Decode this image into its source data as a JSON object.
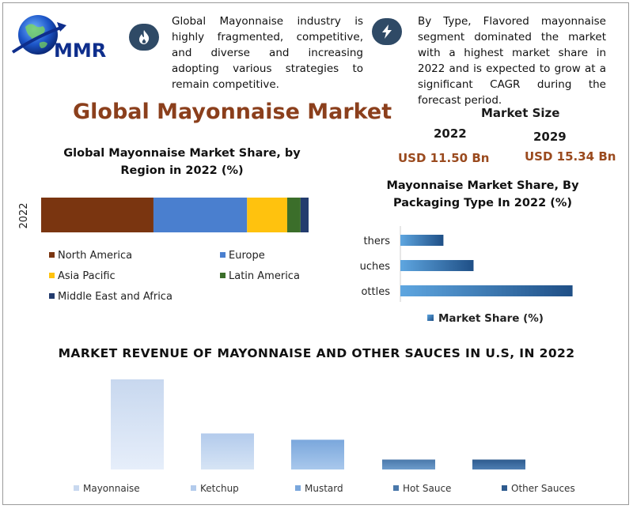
{
  "header": {
    "logo_text": "MMR",
    "feature_1": {
      "icon": "flame-icon",
      "text": "Global Mayonnaise industry is highly fragmented, competitive, and diverse and increasing adopting various strategies to remain competitive."
    },
    "feature_2": {
      "icon": "lightning-icon",
      "text": "By Type, Flavored mayonnaise segment dominated the market with a highest market share in 2022 and is expected to grow at a significant CAGR during the forecast period."
    }
  },
  "title": "Global Mayonnaise Market",
  "market_size": {
    "label": "Market Size",
    "year_1": "2022",
    "value_1": "USD 11.50 Bn",
    "year_2": "2029",
    "value_2": "USD 15.34 Bn"
  },
  "colors": {
    "north_america": "#7a3510",
    "europe": "#4a7fcf",
    "asia_pacific": "#ffc20e",
    "latin_america": "#3b6e2a",
    "middle_east_africa": "#233c6e",
    "title_brown": "#8b3f1c"
  },
  "chart_data": [
    {
      "type": "bar",
      "orientation": "horizontal",
      "stacked": true,
      "title": "Global Mayonnaise Market Share, by Region in 2022 (%)",
      "categories": [
        "2022"
      ],
      "series": [
        {
          "name": "North America",
          "values": [
            42
          ]
        },
        {
          "name": "Europe",
          "values": [
            35
          ]
        },
        {
          "name": "Asia Pacific",
          "values": [
            15
          ]
        },
        {
          "name": "Latin America",
          "values": [
            5
          ]
        },
        {
          "name": "Middle East and Africa",
          "values": [
            3
          ]
        }
      ],
      "legend": "bottom"
    },
    {
      "type": "bar",
      "orientation": "horizontal",
      "title": "Mayonnaise Market Share, By Packaging Type In 2022 (%)",
      "categories": [
        "Others",
        "Pouches",
        "Bottles"
      ],
      "tick_labels": [
        "thers",
        "uches",
        "ottles"
      ],
      "series": [
        {
          "name": "Market Share (%)",
          "values": [
            10,
            17,
            40
          ]
        }
      ],
      "xlim": [
        0,
        50
      ],
      "legend": "bottom"
    },
    {
      "type": "bar",
      "title": "MARKET REVENUE OF MAYONNAISE AND OTHER SAUCES IN U.S, IN 2022",
      "categories": [
        "Mayonnaise",
        "Ketchup",
        "Mustard",
        "Hot Sauce",
        "Other Sauces"
      ],
      "values": [
        100,
        40,
        33,
        11,
        11
      ],
      "ylim": [
        0,
        100
      ],
      "legend": "bottom"
    }
  ]
}
